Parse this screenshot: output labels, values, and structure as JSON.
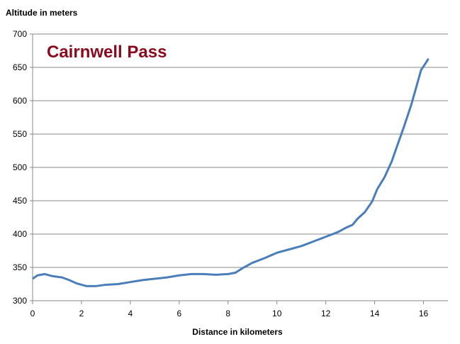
{
  "chart_data": {
    "type": "line",
    "title": "Cairnwell Pass",
    "y_label": "Altitude in meters",
    "x_label": "Distance in kilometers",
    "xlim": [
      0,
      17
    ],
    "xticks": [
      0,
      2,
      4,
      6,
      8,
      10,
      12,
      14,
      16
    ],
    "ylim": [
      300,
      700
    ],
    "yticks": [
      300,
      350,
      400,
      450,
      500,
      550,
      600,
      650,
      700
    ],
    "grid": true,
    "series": [
      {
        "color": "#4a7ebb",
        "x": [
          0,
          0.2,
          0.5,
          0.8,
          1.2,
          1.5,
          1.8,
          2.2,
          2.6,
          3,
          3.5,
          4,
          4.5,
          5,
          5.5,
          6,
          6.5,
          7,
          7.5,
          8,
          8.3,
          8.6,
          9,
          9.5,
          10,
          10.5,
          11,
          11.5,
          12,
          12.5,
          12.8,
          13.1,
          13.3,
          13.6,
          13.9,
          14.1,
          14.4,
          14.7,
          14.9,
          15.2,
          15.5,
          15.7,
          15.9,
          16.1,
          16.2
        ],
        "values": [
          333,
          338,
          340,
          337,
          335,
          331,
          326,
          322,
          322,
          324,
          325,
          328,
          331,
          333,
          335,
          338,
          340,
          340,
          339,
          340,
          342,
          349,
          357,
          364,
          372,
          377,
          382,
          389,
          396,
          403,
          409,
          414,
          423,
          433,
          449,
          467,
          485,
          509,
          530,
          561,
          594,
          620,
          646,
          657,
          663
        ]
      }
    ]
  }
}
